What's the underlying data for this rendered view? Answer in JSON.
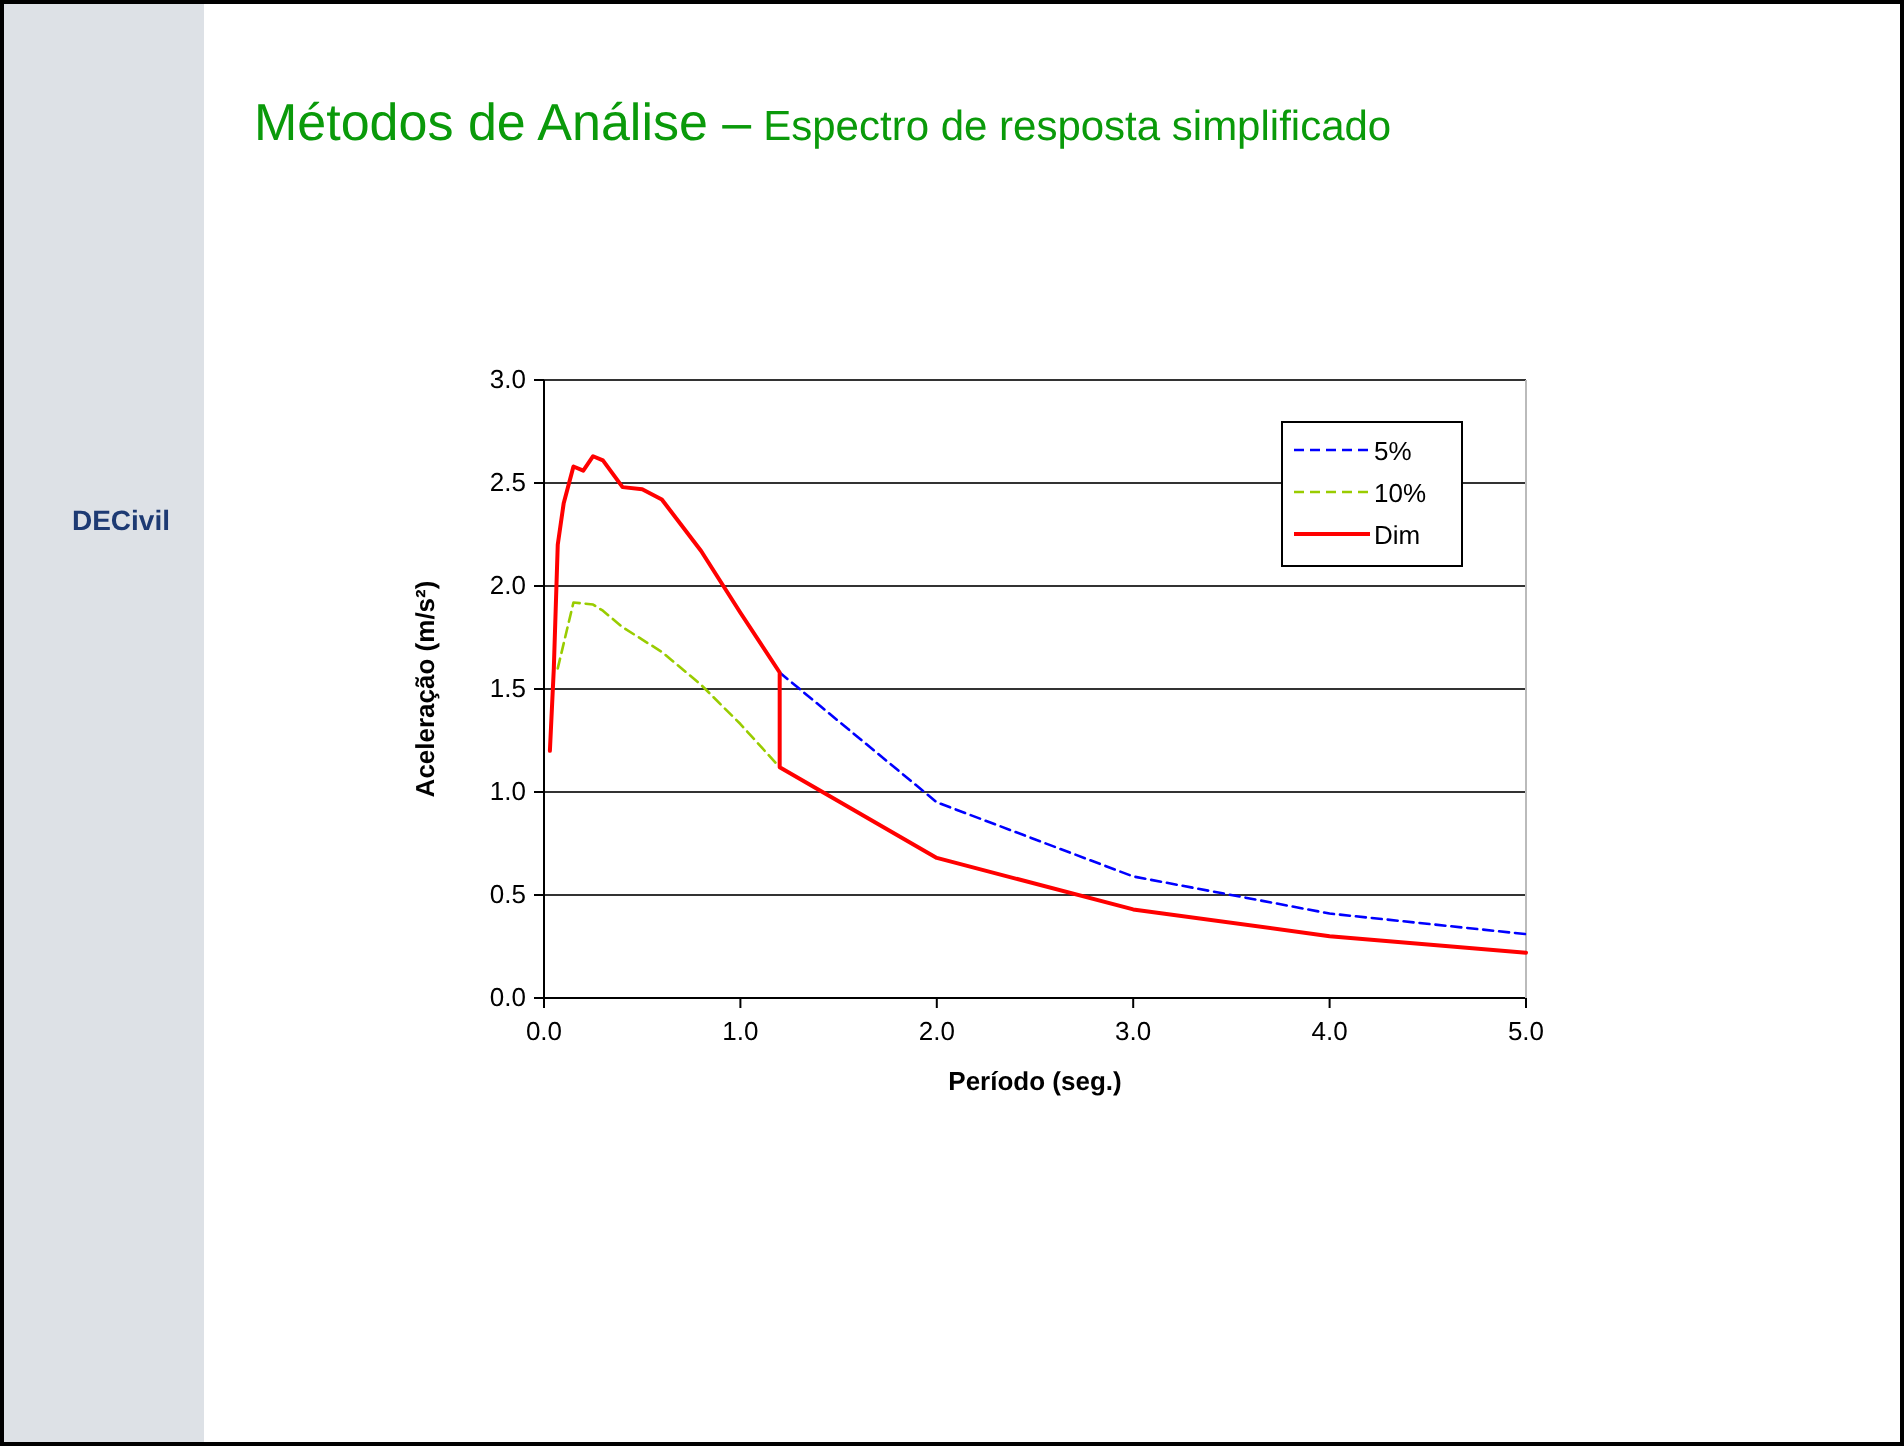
{
  "chart_data": {
    "type": "line",
    "title": "Métodos de Análise –",
    "subtitle": "Espectro de resposta simplificado",
    "xlabel": "Período (seg.)",
    "ylabel": "Aceleração (m/s²)",
    "annotations": [
      "DECivil"
    ],
    "xlim": [
      0,
      5
    ],
    "ylim": [
      0,
      3
    ],
    "xticks": [
      {
        "value": 0,
        "label": "0.0"
      },
      {
        "value": 1,
        "label": "1.0"
      },
      {
        "value": 2,
        "label": "2.0"
      },
      {
        "value": 3,
        "label": "3.0"
      },
      {
        "value": 4,
        "label": "4.0"
      },
      {
        "value": 5,
        "label": "5.0"
      }
    ],
    "yticks": [
      {
        "value": 0,
        "label": "0.0"
      },
      {
        "value": 0.5,
        "label": "0.5"
      },
      {
        "value": 1,
        "label": "1.0"
      },
      {
        "value": 1.5,
        "label": "1.5"
      },
      {
        "value": 2,
        "label": "2.0"
      },
      {
        "value": 2.5,
        "label": "2.5"
      },
      {
        "value": 3,
        "label": "3.0"
      }
    ],
    "grid": "y",
    "legend": "top right",
    "marker": "none",
    "series": [
      {
        "name": "5%",
        "color": "#0000ff",
        "line_style": "dashed",
        "x": [
          1.2,
          2.0,
          3.0,
          4.0,
          5.0
        ],
        "values": [
          1.58,
          0.95,
          0.59,
          0.41,
          0.31
        ]
      },
      {
        "name": "10%",
        "color": "#99cc00",
        "line_style": "dashed",
        "x": [
          0.07,
          0.15,
          0.25,
          0.3,
          0.4,
          0.6,
          0.8,
          1.0,
          1.2
        ],
        "values": [
          1.6,
          1.92,
          1.91,
          1.88,
          1.8,
          1.68,
          1.52,
          1.33,
          1.12
        ]
      },
      {
        "name": "Dim",
        "color": "#ff0000",
        "line_style": "solid",
        "x": [
          0.03,
          0.05,
          0.07,
          0.1,
          0.15,
          0.2,
          0.25,
          0.3,
          0.4,
          0.5,
          0.6,
          0.8,
          1.0,
          1.2,
          1.2,
          2.0,
          3.0,
          4.0,
          5.0
        ],
        "values": [
          1.2,
          1.6,
          2.2,
          2.4,
          2.58,
          2.56,
          2.63,
          2.61,
          2.48,
          2.47,
          2.42,
          2.17,
          1.87,
          1.58,
          1.12,
          0.68,
          0.43,
          0.3,
          0.22
        ]
      }
    ]
  }
}
